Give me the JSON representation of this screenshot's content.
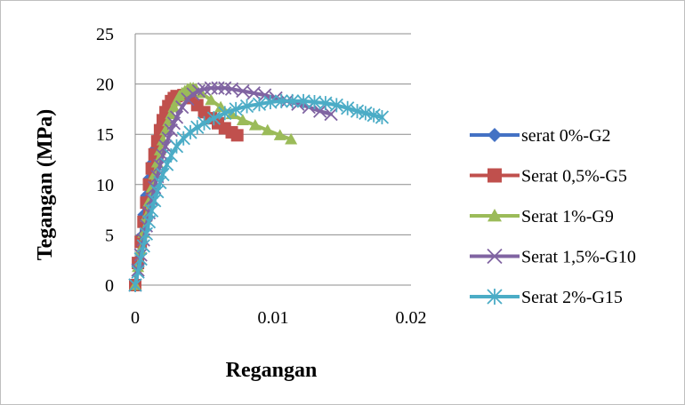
{
  "chart_data": {
    "type": "line",
    "title": "",
    "xlabel": "Regangan",
    "ylabel": "Tegangan (MPa)",
    "xlim": [
      0,
      0.02
    ],
    "ylim": [
      0,
      25
    ],
    "x_ticks": [
      {
        "value": 0,
        "label": "0"
      },
      {
        "value": 0.01,
        "label": "0.01"
      },
      {
        "value": 0.02,
        "label": "0.02"
      }
    ],
    "y_ticks": [
      {
        "value": 0,
        "label": "0"
      },
      {
        "value": 5,
        "label": "5"
      },
      {
        "value": 10,
        "label": "10"
      },
      {
        "value": 15,
        "label": "15"
      },
      {
        "value": 20,
        "label": "20"
      },
      {
        "value": 25,
        "label": "25"
      }
    ],
    "grid": "horizontal",
    "legend_position": "right",
    "series": [
      {
        "name": "serat 0%-G2",
        "color": "#4472C4",
        "marker": "diamond",
        "x": [
          0,
          0.0002,
          0.0004,
          0.0006,
          0.0008,
          0.001,
          0.0012,
          0.0014,
          0.0016,
          0.0018,
          0.002,
          0.0022,
          0.0024,
          0.0026,
          0.0028,
          0.003
        ],
        "y": [
          0,
          2.5,
          4.8,
          7.0,
          8.9,
          10.6,
          12.1,
          13.5,
          14.7,
          15.8,
          16.7,
          17.4,
          17.9,
          18.2,
          18.4,
          18.5
        ]
      },
      {
        "name": "Serat 0,5%-G5",
        "color": "#C0504D",
        "marker": "square",
        "x": [
          0,
          0.0002,
          0.0004,
          0.0006,
          0.0008,
          0.001,
          0.0012,
          0.0014,
          0.0016,
          0.0018,
          0.002,
          0.0022,
          0.0024,
          0.0026,
          0.0028,
          0.003,
          0.0035,
          0.004,
          0.0045,
          0.005,
          0.0055,
          0.006,
          0.0065,
          0.007,
          0.0074
        ],
        "y": [
          0,
          2.2,
          4.3,
          6.3,
          8.2,
          10.0,
          11.6,
          13.0,
          14.3,
          15.4,
          16.4,
          17.2,
          17.8,
          18.3,
          18.6,
          18.8,
          18.9,
          18.6,
          17.9,
          17.2,
          16.6,
          16.1,
          15.6,
          15.2,
          14.9
        ]
      },
      {
        "name": "Serat 1%-G9",
        "color": "#9BBB59",
        "marker": "triangle",
        "x": [
          0,
          0.0002,
          0.0004,
          0.0006,
          0.0008,
          0.001,
          0.0012,
          0.0014,
          0.0016,
          0.0018,
          0.002,
          0.0022,
          0.0024,
          0.0026,
          0.0028,
          0.003,
          0.0032,
          0.0034,
          0.0036,
          0.0038,
          0.004,
          0.0042,
          0.0044,
          0.0048,
          0.0055,
          0.0062,
          0.007,
          0.0078,
          0.0087,
          0.0096,
          0.0105,
          0.0113
        ],
        "y": [
          0,
          1.8,
          3.5,
          5.2,
          6.8,
          8.3,
          9.7,
          11.0,
          12.2,
          13.4,
          14.4,
          15.4,
          16.3,
          17.0,
          17.7,
          18.3,
          18.8,
          19.1,
          19.3,
          19.5,
          19.6,
          19.6,
          19.5,
          19.1,
          18.4,
          17.7,
          17.0,
          16.4,
          15.9,
          15.4,
          14.9,
          14.5
        ]
      },
      {
        "name": "Serat 1,5%-G10",
        "color": "#8064A2",
        "marker": "x",
        "x": [
          0,
          0.0002,
          0.0004,
          0.0006,
          0.0008,
          0.001,
          0.0012,
          0.0014,
          0.0016,
          0.0018,
          0.002,
          0.0022,
          0.0024,
          0.0026,
          0.0028,
          0.003,
          0.0034,
          0.0038,
          0.0042,
          0.0046,
          0.005,
          0.0055,
          0.006,
          0.0065,
          0.007,
          0.0078,
          0.0086,
          0.0094,
          0.0102,
          0.011,
          0.0118,
          0.0126,
          0.0134,
          0.0142
        ],
        "y": [
          0,
          1.5,
          3.0,
          4.5,
          5.9,
          7.2,
          8.5,
          9.7,
          10.8,
          11.9,
          12.9,
          13.8,
          14.6,
          15.4,
          16.1,
          16.7,
          17.7,
          18.5,
          19.0,
          19.3,
          19.5,
          19.6,
          19.6,
          19.6,
          19.5,
          19.3,
          19.1,
          18.9,
          18.6,
          18.3,
          18.0,
          17.7,
          17.3,
          17.0
        ]
      },
      {
        "name": "Serat 2%-G15",
        "color": "#4BACC6",
        "marker": "asterisk",
        "x": [
          0,
          0.0002,
          0.0004,
          0.0006,
          0.0008,
          0.001,
          0.0012,
          0.0014,
          0.0016,
          0.0018,
          0.002,
          0.0023,
          0.0026,
          0.003,
          0.0035,
          0.004,
          0.0045,
          0.005,
          0.0057,
          0.0065,
          0.0073,
          0.0081,
          0.009,
          0.0098,
          0.0106,
          0.0114,
          0.0122,
          0.013,
          0.0138,
          0.0146,
          0.0154,
          0.0161,
          0.0167,
          0.0173,
          0.0179
        ],
        "y": [
          0,
          1.3,
          2.6,
          3.9,
          5.1,
          6.3,
          7.4,
          8.4,
          9.3,
          10.2,
          11.0,
          12.0,
          12.9,
          13.8,
          14.6,
          15.2,
          15.7,
          16.1,
          16.6,
          17.1,
          17.5,
          17.8,
          18.0,
          18.2,
          18.3,
          18.3,
          18.3,
          18.2,
          18.1,
          17.9,
          17.6,
          17.3,
          17.1,
          16.9,
          16.7
        ]
      }
    ]
  }
}
